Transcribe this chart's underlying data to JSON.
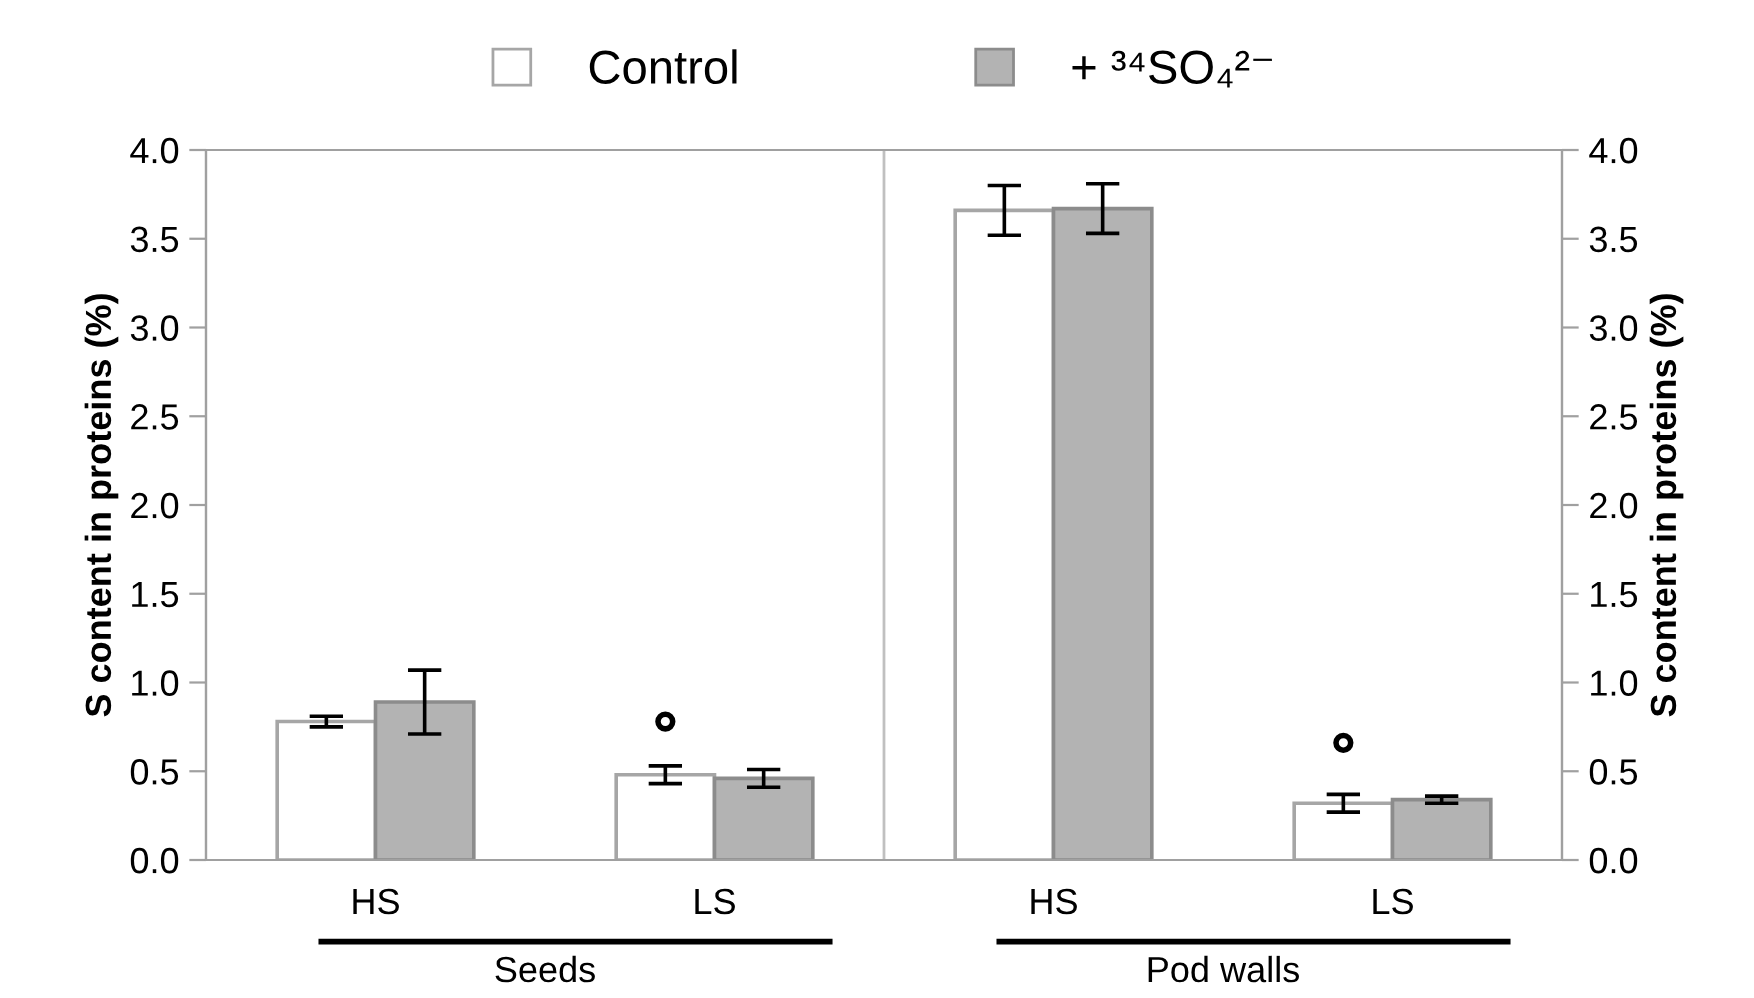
{
  "chart_data": {
    "type": "bar",
    "categories": [
      "HS",
      "LS",
      "HS",
      "LS"
    ],
    "series": [
      {
        "name": "Control",
        "color": "#ffffff",
        "values": [
          0.78,
          0.48,
          3.66,
          0.32
        ],
        "errors": [
          0.03,
          0.05,
          0.14,
          0.05
        ]
      },
      {
        "name": "+ ³⁴SO₄²⁻",
        "color": "#b3b3b3",
        "values": [
          0.89,
          0.46,
          3.67,
          0.34
        ],
        "errors": [
          0.18,
          0.05,
          0.14,
          0.02
        ]
      },
      {
        "type": "scatter",
        "color": "#000000",
        "marker": "circle",
        "values": [
          null,
          0.78,
          null,
          0.66
        ]
      }
    ],
    "ylabel": "S content in proteins (%)",
    "y2label": "S content in proteins (%)",
    "ylim": [
      0,
      4
    ],
    "yticks": [
      {
        "value": 0,
        "label": "0.0"
      },
      {
        "value": 0.5,
        "label": "0.5"
      },
      {
        "value": 1,
        "label": "1.0"
      },
      {
        "value": 1.5,
        "label": "1.5"
      },
      {
        "value": 2,
        "label": "2.0"
      },
      {
        "value": 2.5,
        "label": "2.5"
      },
      {
        "value": 3,
        "label": "3.0"
      },
      {
        "value": 3.5,
        "label": "3.5"
      },
      {
        "value": 4,
        "label": "4.0"
      }
    ],
    "y2lim": [
      0,
      4
    ],
    "y2ticks": [
      {
        "value": 0,
        "label": "0.0"
      },
      {
        "value": 0.5,
        "label": "0.5"
      },
      {
        "value": 1,
        "label": "1.0"
      },
      {
        "value": 1.5,
        "label": "1.5"
      },
      {
        "value": 2,
        "label": "2.0"
      },
      {
        "value": 2.5,
        "label": "2.5"
      },
      {
        "value": 3,
        "label": "3.0"
      },
      {
        "value": 3.5,
        "label": "3.5"
      },
      {
        "value": 4,
        "label": "4.0"
      }
    ],
    "annotations": [
      "Seeds",
      "Pod walls"
    ],
    "legend": "top",
    "grid": false
  }
}
